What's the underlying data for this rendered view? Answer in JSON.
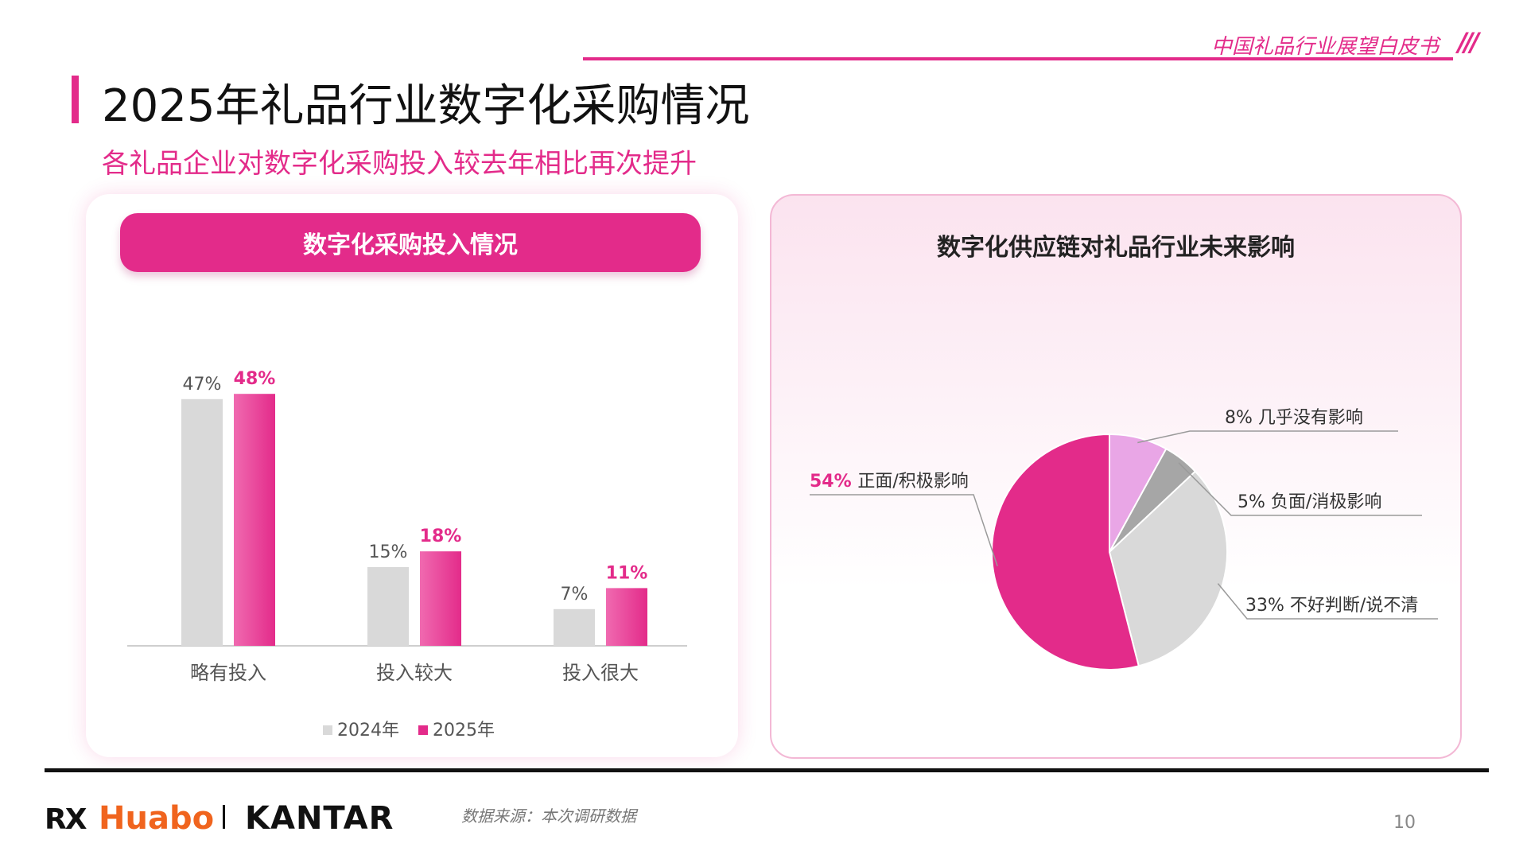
{
  "header": {
    "report_title": "中国礼品行业展望白皮书",
    "slashes": "///"
  },
  "page": {
    "title": "2025年礼品行业数字化采购情况",
    "subtitle": "各礼品企业对数字化采购投入较去年相比再次提升"
  },
  "colors": {
    "accent": "#e32b8a",
    "gray_bar": "#d9d9d9",
    "light_pink": "#e9a6e6",
    "dark_gray": "#a6a6a6",
    "light_gray": "#d9d9d9"
  },
  "chart_data": [
    {
      "type": "bar",
      "title": "数字化采购投入情况",
      "categories": [
        "略有投入",
        "投入较大",
        "投入很大"
      ],
      "series": [
        {
          "name": "2024年",
          "values": [
            47,
            15,
            7
          ],
          "labels": [
            "47%",
            "15%",
            "7%"
          ],
          "color": "#d9d9d9"
        },
        {
          "name": "2025年",
          "values": [
            48,
            18,
            11
          ],
          "labels": [
            "48%",
            "18%",
            "11%"
          ],
          "color": "#e32b8a"
        }
      ],
      "ylim": [
        0,
        50
      ],
      "grid": false,
      "legend": "bottom"
    },
    {
      "type": "pie",
      "title": "数字化供应链对礼品行业未来影响",
      "slices": [
        {
          "pct": "8%",
          "label": "几乎没有影响",
          "value": 8,
          "color": "#e9a6e6"
        },
        {
          "pct": "5%",
          "label": "负面/消极影响",
          "value": 5,
          "color": "#a6a6a6"
        },
        {
          "pct": "33%",
          "label": "不好判断/说不清",
          "value": 33,
          "color": "#d9d9d9"
        },
        {
          "pct": "54%",
          "label": "正面/积极影响",
          "value": 54,
          "color": "#e32b8a"
        }
      ]
    }
  ],
  "footer": {
    "logo_rx": "RX",
    "logo_huabo": "Huabo",
    "logo_kantar": "KANTAR",
    "source": "数据来源：本次调研数据",
    "page_number": "10"
  }
}
